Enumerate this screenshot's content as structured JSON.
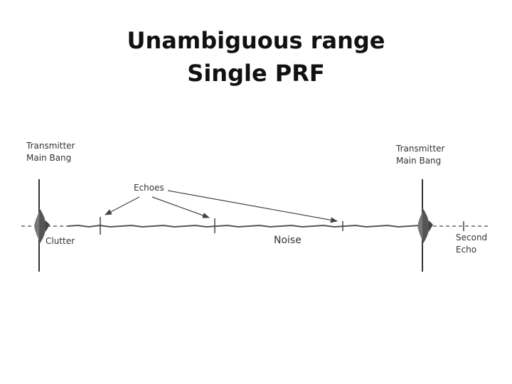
{
  "slide": {
    "title_line1": "Unambiguous range",
    "title_line2": "Single PRF"
  },
  "diagram": {
    "labels": {
      "transmitter_left_line1": "Transmitter",
      "transmitter_left_line2": "Main Bang",
      "transmitter_right_line1": "Transmitter",
      "transmitter_right_line2": "Main Bang",
      "echoes": "Echoes",
      "clutter": "Clutter",
      "noise": "Noise",
      "second_echo_line1": "Second",
      "second_echo_line2": "Echo"
    }
  }
}
